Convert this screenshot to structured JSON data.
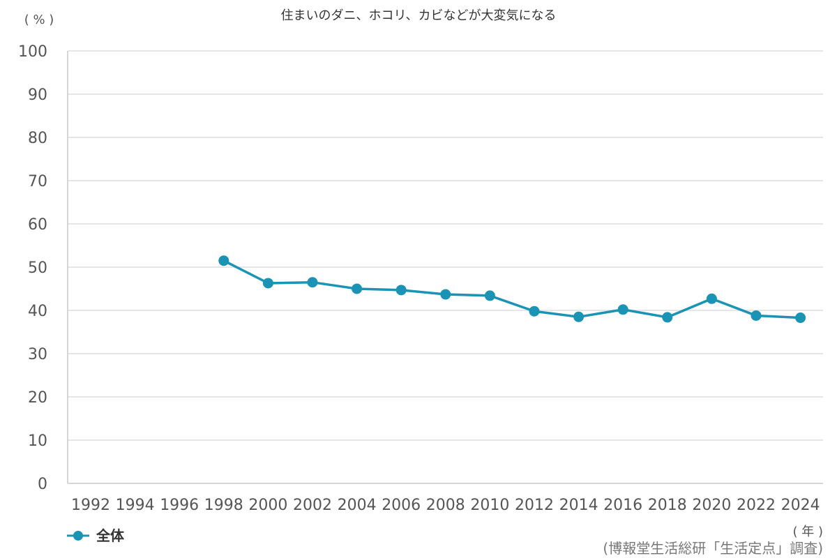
{
  "chart_data": {
    "type": "line",
    "title": "住まいのダニ、ホコリ、カビなどが大変気になる",
    "ylabel": "( % )",
    "xlabel": "( 年 )",
    "source": "(博報堂生活総研「生活定点」調査)",
    "ylim": [
      0,
      100
    ],
    "yticks": [
      0,
      10,
      20,
      30,
      40,
      50,
      60,
      70,
      80,
      90,
      100
    ],
    "categories": [
      "1992",
      "1994",
      "1996",
      "1998",
      "2000",
      "2002",
      "2004",
      "2006",
      "2008",
      "2010",
      "2012",
      "2014",
      "2016",
      "2018",
      "2020",
      "2022",
      "2024"
    ],
    "series": [
      {
        "name": "全体",
        "color": "#1a93b5",
        "values": [
          null,
          null,
          null,
          51.5,
          46.3,
          46.5,
          45.0,
          44.7,
          43.7,
          43.4,
          39.8,
          38.5,
          40.2,
          38.4,
          42.7,
          38.8,
          38.3
        ]
      }
    ],
    "grid": true,
    "legend": "bottom-left"
  }
}
